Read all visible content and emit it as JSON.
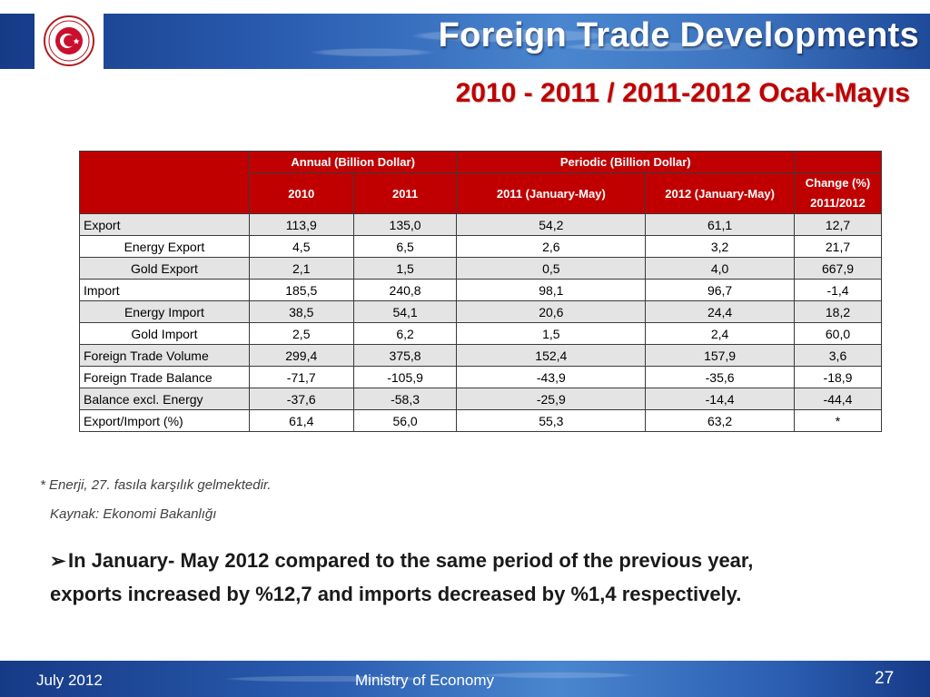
{
  "header": {
    "title": "Foreign Trade Developments",
    "subtitle": "2010 - 2011 / 2011-2012 Ocak-Mayıs",
    "logo_text": "REPUBLIC OF TURKEY · MINISTRY OF ECONOMY"
  },
  "table": {
    "group_headers": [
      "",
      "Annual (Billion Dollar)",
      "Periodic (Billion Dollar)",
      ""
    ],
    "col_headers": [
      "2010",
      "2011",
      "2011 (January-May)",
      "2012 (January-May)"
    ],
    "change_header_1": "Change  (%)",
    "change_header_2": "2011/2012",
    "rows": [
      {
        "label": "Export",
        "values": [
          "113,9",
          "135,0",
          "54,2",
          "61,1",
          "12,7"
        ]
      },
      {
        "label": "Energy Export",
        "values": [
          "4,5",
          "6,5",
          "2,6",
          "3,2",
          "21,7"
        ]
      },
      {
        "label": "Gold Export",
        "values": [
          "2,1",
          "1,5",
          "0,5",
          "4,0",
          "667,9"
        ]
      },
      {
        "label": "Import",
        "values": [
          "185,5",
          "240,8",
          "98,1",
          "96,7",
          "-1,4"
        ]
      },
      {
        "label": "Energy Import",
        "values": [
          "38,5",
          "54,1",
          "20,6",
          "24,4",
          "18,2"
        ]
      },
      {
        "label": "Gold Import",
        "values": [
          "2,5",
          "6,2",
          "1,5",
          "2,4",
          "60,0"
        ]
      },
      {
        "label": "Foreign Trade Volume",
        "values": [
          "299,4",
          "375,8",
          "152,4",
          "157,9",
          "3,6"
        ]
      },
      {
        "label": "Foreign Trade Balance",
        "values": [
          "-71,7",
          "-105,9",
          "-43,9",
          "-35,6",
          "-18,9"
        ]
      },
      {
        "label": "Balance excl. Energy",
        "values": [
          "-37,6",
          "-58,3",
          "-25,9",
          "-14,4",
          "-44,4"
        ]
      },
      {
        "label": "Export/Import (%)",
        "values": [
          "61,4",
          "56,0",
          "55,3",
          "63,2",
          "*"
        ]
      }
    ]
  },
  "notes": {
    "footnote": "* Enerji, 27. fasıla karşılık gelmektedir.",
    "source": "Kaynak: Ekonomi Bakanlığı"
  },
  "bullet": {
    "line1": "In January- May 2012 compared to the same period of the previous year,",
    "line2": "exports increased by %12,7 and imports decreased by %1,4 respectively."
  },
  "footer": {
    "date": "July 2012",
    "org": "Ministry of Economy",
    "page": "27"
  },
  "colors": {
    "header_red": "#c00000",
    "banner_blue": "#2a5cb0",
    "row_shade": "#e4e4e4"
  }
}
